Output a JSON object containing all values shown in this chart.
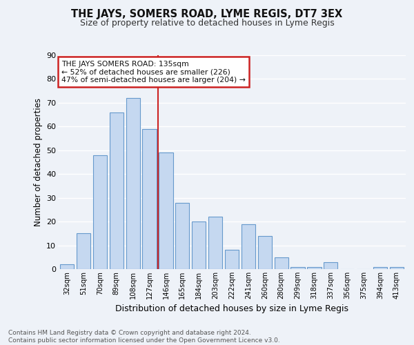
{
  "title": "THE JAYS, SOMERS ROAD, LYME REGIS, DT7 3EX",
  "subtitle": "Size of property relative to detached houses in Lyme Regis",
  "xlabel": "Distribution of detached houses by size in Lyme Regis",
  "ylabel": "Number of detached properties",
  "categories": [
    "32sqm",
    "51sqm",
    "70sqm",
    "89sqm",
    "108sqm",
    "127sqm",
    "146sqm",
    "165sqm",
    "184sqm",
    "203sqm",
    "222sqm",
    "241sqm",
    "260sqm",
    "280sqm",
    "299sqm",
    "318sqm",
    "337sqm",
    "356sqm",
    "375sqm",
    "394sqm",
    "413sqm"
  ],
  "values": [
    2,
    15,
    48,
    66,
    72,
    59,
    49,
    28,
    20,
    22,
    8,
    19,
    14,
    5,
    1,
    1,
    3,
    0,
    0,
    1,
    1
  ],
  "bar_color": "#c5d8f0",
  "bar_edge_color": "#6699cc",
  "red_line_index": 5.5,
  "annotation_line1": "THE JAYS SOMERS ROAD: 135sqm",
  "annotation_line2": "← 52% of detached houses are smaller (226)",
  "annotation_line3": "47% of semi-detached houses are larger (204) →",
  "annotation_box_color": "#ffffff",
  "annotation_border_color": "#cc2222",
  "footer_text": "Contains HM Land Registry data © Crown copyright and database right 2024.\nContains public sector information licensed under the Open Government Licence v3.0.",
  "background_color": "#eef2f8",
  "grid_color": "#ffffff",
  "ylim": [
    0,
    90
  ],
  "yticks": [
    0,
    10,
    20,
    30,
    40,
    50,
    60,
    70,
    80,
    90
  ]
}
